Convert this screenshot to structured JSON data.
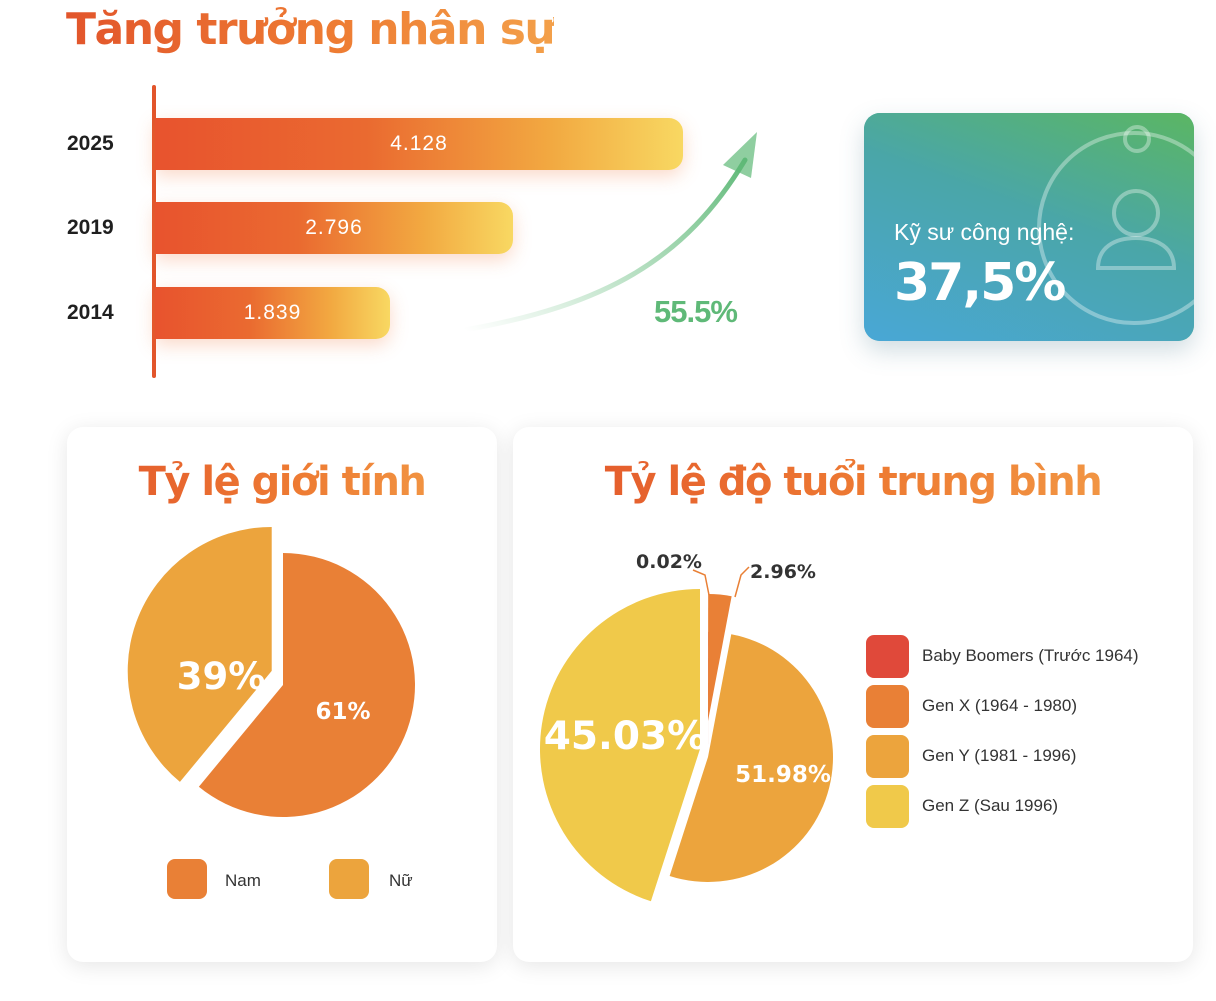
{
  "title": "Tăng trưởng nhân sự",
  "growth": {
    "percent_label": "55.5%",
    "colors": {
      "bar_start": "#e8532e",
      "bar_end": "#f8d862",
      "axis": "#e2552b",
      "arrow": "#5fb978"
    }
  },
  "engineer_card": {
    "label": "Kỹ sư công nghệ:",
    "value": "37,5%",
    "icon": "person-icon"
  },
  "gender": {
    "title": "Tỷ lệ giới tính",
    "legend": [
      {
        "label": "Nam",
        "color": "#e98036"
      },
      {
        "label": "Nữ",
        "color": "#eca43d"
      }
    ]
  },
  "age": {
    "title": "Tỷ lệ độ tuổi trung bình",
    "legend": [
      {
        "label": "Baby Boomers (Trước 1964)",
        "color": "#e0493a"
      },
      {
        "label": "Gen X (1964 - 1980)",
        "color": "#e98036"
      },
      {
        "label": "Gen Y (1981 - 1996)",
        "color": "#eca43d"
      },
      {
        "label": "Gen Z (Sau 1996)",
        "color": "#f0c94a"
      }
    ]
  },
  "chart_data": [
    {
      "type": "bar",
      "orientation": "horizontal",
      "title": "Tăng trưởng nhân sự",
      "categories": [
        "2025",
        "2019",
        "2014"
      ],
      "values": [
        4128,
        2796,
        1839
      ],
      "value_labels": [
        "4.128",
        "2.796",
        "1.839"
      ],
      "annotation": "55.5%"
    },
    {
      "type": "pie",
      "title": "Tỷ lệ giới tính",
      "labels": [
        "Nam",
        "Nữ"
      ],
      "values": [
        61,
        39
      ],
      "value_labels": [
        "61%",
        "39%"
      ],
      "colors": [
        "#e98036",
        "#eca43d"
      ],
      "exploded": "Nữ",
      "legend": "bottom"
    },
    {
      "type": "pie",
      "title": "Tỷ lệ độ tuổi trung bình",
      "labels": [
        "Baby Boomers (Trước 1964)",
        "Gen X (1964 - 1980)",
        "Gen Y (1981 - 1996)",
        "Gen Z (Sau 1996)"
      ],
      "values": [
        0.02,
        2.96,
        51.98,
        45.03
      ],
      "value_labels": [
        "0.02%",
        "2.96%",
        "51.98%",
        "45.03%"
      ],
      "colors": [
        "#e0493a",
        "#e98036",
        "#eca43d",
        "#f0c94a"
      ],
      "exploded": "Gen Z (Sau 1996)",
      "legend": "right"
    }
  ]
}
